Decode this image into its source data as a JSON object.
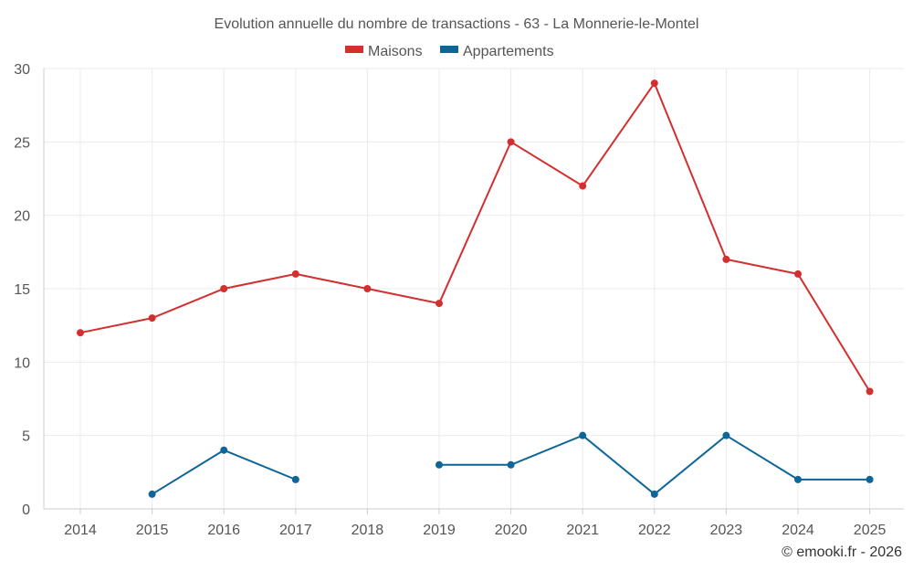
{
  "chart_data": {
    "type": "line",
    "title": "Evolution annuelle du nombre de transactions - 63 - La Monnerie-le-Montel",
    "categories": [
      "2014",
      "2015",
      "2016",
      "2017",
      "2018",
      "2019",
      "2020",
      "2021",
      "2022",
      "2023",
      "2024",
      "2025"
    ],
    "series": [
      {
        "name": "Maisons",
        "color": "#d32f2f",
        "values": [
          12,
          13,
          15,
          16,
          15,
          14,
          25,
          22,
          29,
          17,
          16,
          8
        ]
      },
      {
        "name": "Appartements",
        "color": "#0d6699",
        "values": [
          null,
          1,
          4,
          2,
          null,
          3,
          3,
          5,
          1,
          5,
          2,
          2
        ]
      }
    ],
    "ylim": [
      0,
      30
    ],
    "yticks": [
      "0",
      "5",
      "10",
      "15",
      "20",
      "25",
      "30"
    ],
    "xlabel": "",
    "ylabel": "",
    "grid": true,
    "legend_position": "top-center"
  },
  "footer": {
    "copyright": "© emooki.fr - 2026"
  }
}
